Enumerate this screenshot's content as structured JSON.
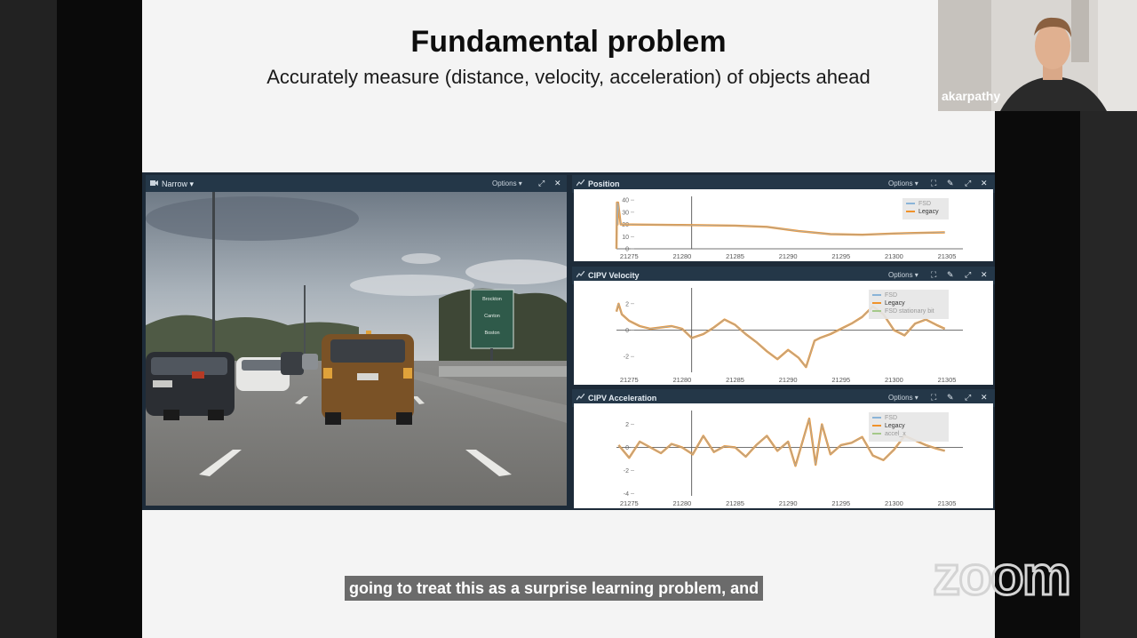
{
  "slide": {
    "title": "Fundamental problem",
    "subtitle": "Accurately measure (distance, velocity, acceleration) of objects ahead"
  },
  "camera_panel": {
    "label": "Narrow",
    "options_label": "Options",
    "sign_lines": [
      "Brockton",
      "Canton",
      "Boston"
    ]
  },
  "panels": [
    {
      "title": "Position",
      "options_label": "Options",
      "legend": [
        {
          "label": "FSD",
          "color": "#8ab4d8"
        },
        {
          "label": "Legacy",
          "color": "#f0922a"
        }
      ]
    },
    {
      "title": "CIPV Velocity",
      "options_label": "Options",
      "legend": [
        {
          "label": "FSD",
          "color": "#8ab4d8"
        },
        {
          "label": "Legacy",
          "color": "#f0922a"
        },
        {
          "label": "FSD stationary bit",
          "color": "#a5c98a"
        }
      ]
    },
    {
      "title": "CIPV Acceleration",
      "options_label": "Options",
      "legend": [
        {
          "label": "FSD",
          "color": "#8ab4d8"
        },
        {
          "label": "Legacy",
          "color": "#f0922a"
        },
        {
          "label": "accel_x",
          "color": "#a5c98a"
        }
      ]
    }
  ],
  "chart_data": [
    {
      "type": "line",
      "title": "Position",
      "x_ticks": [
        21275,
        21280,
        21285,
        21290,
        21295,
        21300,
        21305
      ],
      "y_ticks": [
        0,
        10,
        20,
        30,
        40
      ],
      "xlim": [
        21273.8,
        21305.5
      ],
      "ylim": [
        0,
        43
      ],
      "cursor_x": 21280.9,
      "series": [
        {
          "name": "Legacy",
          "x": [
            21273.8,
            21273.85,
            21273.9,
            21273.95,
            21274.2,
            21280,
            21285,
            21288,
            21291,
            21294,
            21297,
            21300,
            21302,
            21304.8
          ],
          "y": [
            0,
            38,
            20,
            38,
            20,
            19.5,
            19,
            18,
            14.5,
            12,
            11.5,
            12.5,
            13,
            13.5
          ]
        },
        {
          "name": "FSD",
          "x": [
            21273.8,
            21273.85,
            21273.9,
            21273.95,
            21274.2,
            21280,
            21285,
            21288,
            21291,
            21294,
            21297,
            21300,
            21302,
            21304.8
          ],
          "y": [
            0,
            38,
            20,
            38,
            20,
            19.5,
            19,
            18,
            14.5,
            12,
            11.5,
            12.5,
            13,
            13.5
          ]
        }
      ]
    },
    {
      "type": "line",
      "title": "CIPV Velocity",
      "x_ticks": [
        21275,
        21280,
        21285,
        21290,
        21295,
        21300,
        21305
      ],
      "y_ticks": [
        -2,
        0,
        2
      ],
      "xlim": [
        21273.8,
        21305.5
      ],
      "ylim": [
        -3.2,
        3.2
      ],
      "cursor_x": 21280.9,
      "series": [
        {
          "name": "Legacy",
          "x": [
            21273.8,
            21274,
            21274.3,
            21275,
            21276,
            21277,
            21278,
            21279,
            21280,
            21280.9,
            21282,
            21283,
            21284,
            21285,
            21286,
            21287,
            21288,
            21289,
            21290,
            21291,
            21291.7,
            21292.5,
            21293,
            21294,
            21295,
            21296,
            21297,
            21298,
            21299,
            21300,
            21301,
            21302,
            21303,
            21304,
            21304.8
          ],
          "y": [
            1.4,
            2.0,
            1.2,
            0.7,
            0.3,
            0.1,
            0.2,
            0.3,
            0.1,
            -0.6,
            -0.3,
            0.2,
            0.8,
            0.4,
            -0.3,
            -0.9,
            -1.6,
            -2.2,
            -1.5,
            -2.1,
            -2.8,
            -0.8,
            -0.6,
            -0.3,
            0.1,
            0.5,
            1.0,
            1.8,
            1.2,
            0.0,
            -0.4,
            0.5,
            0.8,
            0.4,
            0.1
          ]
        },
        {
          "name": "FSD",
          "x": [
            21273.8,
            21274,
            21274.3,
            21275,
            21276,
            21277,
            21278,
            21279,
            21280,
            21280.9,
            21282,
            21283,
            21284,
            21285,
            21286,
            21287,
            21288,
            21289,
            21290,
            21291,
            21291.7,
            21292.5,
            21293,
            21294,
            21295,
            21296,
            21297,
            21298,
            21299,
            21300,
            21301,
            21302,
            21303,
            21304,
            21304.8
          ],
          "y": [
            1.4,
            2.0,
            1.2,
            0.7,
            0.3,
            0.1,
            0.2,
            0.3,
            0.1,
            -0.6,
            -0.3,
            0.2,
            0.8,
            0.4,
            -0.3,
            -0.9,
            -1.6,
            -2.2,
            -1.5,
            -2.1,
            -2.8,
            -0.8,
            -0.6,
            -0.3,
            0.1,
            0.5,
            1.0,
            1.8,
            1.2,
            0.0,
            -0.4,
            0.5,
            0.8,
            0.4,
            0.1
          ]
        }
      ]
    },
    {
      "type": "line",
      "title": "CIPV Acceleration",
      "x_ticks": [
        21275,
        21280,
        21285,
        21290,
        21295,
        21300,
        21305
      ],
      "y_ticks": [
        -4,
        -2,
        0,
        2
      ],
      "xlim": [
        21273.8,
        21305.5
      ],
      "ylim": [
        -4.2,
        3.2
      ],
      "cursor_x": 21280.9,
      "series": [
        {
          "name": "Legacy",
          "x": [
            21274,
            21275,
            21276,
            21277,
            21278,
            21279,
            21280,
            21281,
            21282,
            21283,
            21284,
            21285,
            21286,
            21287,
            21288,
            21289,
            21290,
            21290.7,
            21291.3,
            21292,
            21292.6,
            21293.2,
            21294,
            21295,
            21296,
            21297,
            21298,
            21299,
            21300,
            21301,
            21302,
            21303,
            21304,
            21304.8
          ],
          "y": [
            0.2,
            -0.9,
            0.5,
            0.0,
            -0.5,
            0.3,
            0.0,
            -0.6,
            1.0,
            -0.4,
            0.1,
            0.0,
            -0.8,
            0.2,
            1.0,
            -0.3,
            0.5,
            -1.6,
            0.3,
            2.5,
            -1.5,
            2.0,
            -0.6,
            0.2,
            0.4,
            0.9,
            -0.7,
            -1.1,
            -0.2,
            1.0,
            0.6,
            0.2,
            -0.1,
            -0.3
          ]
        },
        {
          "name": "FSD",
          "x": [
            21274,
            21275,
            21276,
            21277,
            21278,
            21279,
            21280,
            21281,
            21282,
            21283,
            21284,
            21285,
            21286,
            21287,
            21288,
            21289,
            21290,
            21290.7,
            21291.3,
            21292,
            21292.6,
            21293.2,
            21294,
            21295,
            21296,
            21297,
            21298,
            21299,
            21300,
            21301,
            21302,
            21303,
            21304,
            21304.8
          ],
          "y": [
            0.2,
            -0.9,
            0.5,
            0.0,
            -0.5,
            0.3,
            0.0,
            -0.6,
            1.0,
            -0.4,
            0.1,
            0.0,
            -0.8,
            0.2,
            1.0,
            -0.3,
            0.5,
            -1.6,
            0.3,
            2.5,
            -1.5,
            2.0,
            -0.6,
            0.2,
            0.4,
            0.9,
            -0.7,
            -1.1,
            -0.2,
            1.0,
            0.6,
            0.2,
            -0.1,
            -0.3
          ]
        }
      ]
    }
  ],
  "webcam": {
    "name": "akarpathy"
  },
  "caption": "going to treat this as a surprise learning problem, and",
  "branding": {
    "logo_text": "zoom"
  },
  "colors": {
    "legacy": "#f0922a",
    "fsd": "#8ab4d8",
    "panel_bar": "#243748",
    "dashboard_bg": "#1d2b39"
  }
}
